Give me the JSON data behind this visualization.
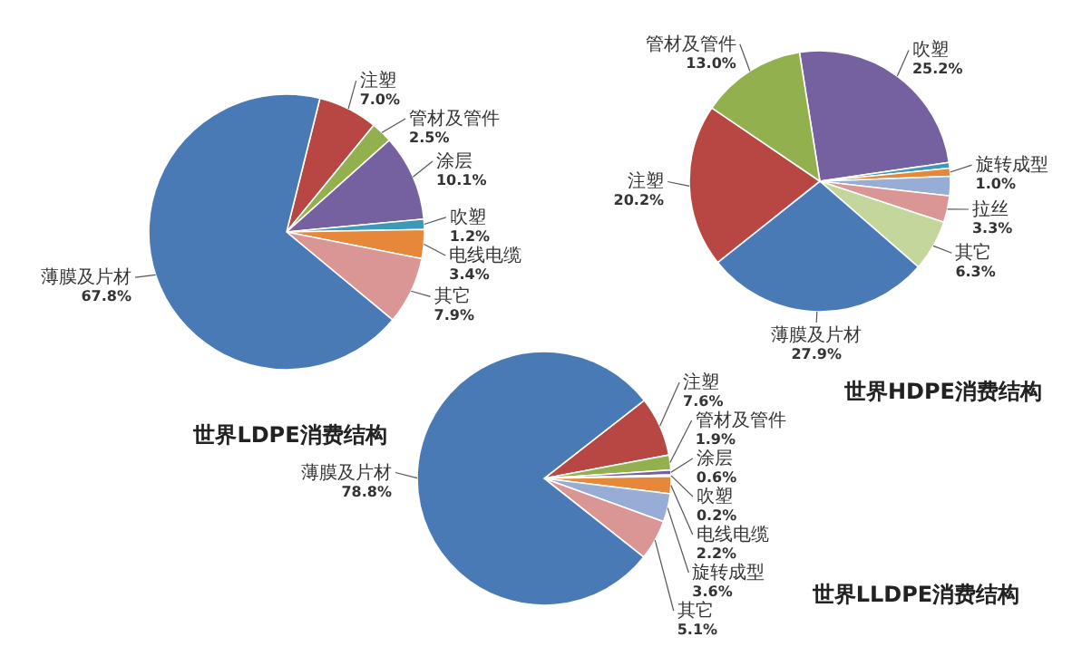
{
  "chart_data": [
    {
      "type": "pie",
      "title": "世界LDPE消费结构",
      "categories": [
        "注塑",
        "管材及管件",
        "涂层",
        "吹塑",
        "电线电缆",
        "其它",
        "薄膜及片材"
      ],
      "values": [
        7.0,
        2.5,
        10.1,
        1.2,
        3.4,
        7.9,
        67.8
      ],
      "value_labels": [
        "7.0%",
        "2.5%",
        "10.1%",
        "1.2%",
        "3.4%",
        "7.9%",
        "67.8%"
      ],
      "colors": [
        "#b84743",
        "#93b04f",
        "#7560a0",
        "#3c9ab8",
        "#e7873a",
        "#d99694",
        "#4a7ab5"
      ]
    },
    {
      "type": "pie",
      "title": "世界HDPE消费结构",
      "categories": [
        "吹塑",
        null,
        "旋转成型",
        null,
        "拉丝",
        "其它",
        "薄膜及片材",
        "注塑",
        "管材及管件"
      ],
      "values": [
        25.2,
        0.7,
        1.0,
        2.4,
        3.3,
        6.3,
        27.9,
        20.2,
        13.0
      ],
      "value_labels": [
        "25.2%",
        null,
        "1.0%",
        null,
        "3.3%",
        "6.3%",
        "27.9%",
        "20.2%",
        "13.0%"
      ],
      "colors": [
        "#7560a0",
        "#3c9ab8",
        "#e7873a",
        "#98add6",
        "#d99694",
        "#c3d69b",
        "#4a7ab5",
        "#b84743",
        "#93b04f"
      ]
    },
    {
      "type": "pie",
      "title": "世界LLDPE消费结构",
      "categories": [
        "注塑",
        "管材及管件",
        "涂层",
        "吹塑",
        "电线电缆",
        "旋转成型",
        "其它",
        "薄膜及片材"
      ],
      "values": [
        7.6,
        1.9,
        0.6,
        0.2,
        2.2,
        3.6,
        5.1,
        78.8
      ],
      "value_labels": [
        "7.6%",
        "1.9%",
        "0.6%",
        "0.2%",
        "2.2%",
        "3.6%",
        "5.1%",
        "78.8%"
      ],
      "colors": [
        "#b84743",
        "#93b04f",
        "#7560a0",
        "#3c9ab8",
        "#e7873a",
        "#98add6",
        "#d99694",
        "#4a7ab5"
      ]
    }
  ]
}
